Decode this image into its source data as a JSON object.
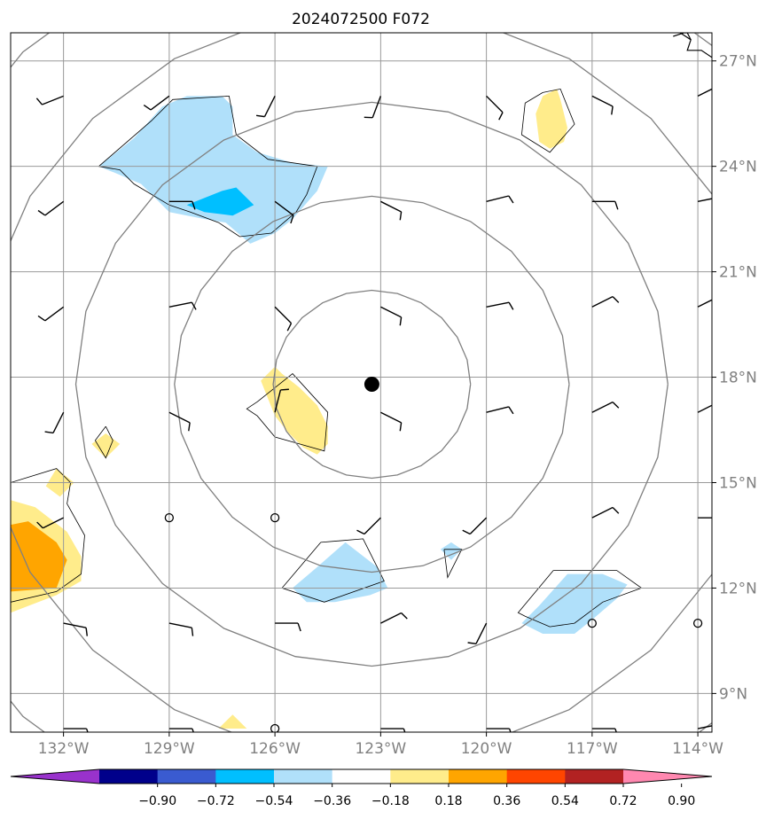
{
  "chart_data": {
    "type": "heatmap",
    "title": "2024072500 F072",
    "x_ticks": [
      "132°W",
      "129°W",
      "126°W",
      "123°W",
      "120°W",
      "117°W",
      "114°W"
    ],
    "x_tick_values": [
      -132,
      -129,
      -126,
      -123,
      -120,
      -117,
      -114
    ],
    "y_ticks": [
      "9°N",
      "12°N",
      "15°N",
      "18°N",
      "21°N",
      "24°N",
      "27°N"
    ],
    "y_tick_values": [
      9,
      12,
      15,
      18,
      21,
      24,
      27
    ],
    "xlim": [
      -133.5,
      -113.6
    ],
    "ylim": [
      7.9,
      27.8
    ],
    "grid": true,
    "center_marker": {
      "lon": -123.25,
      "lat": 17.8
    },
    "range_rings": [
      {
        "lon": -123.25,
        "lat": 17.8,
        "radius_deg": 2.8
      },
      {
        "lon": -123.25,
        "lat": 17.8,
        "radius_deg": 5.6
      },
      {
        "lon": -123.25,
        "lat": 17.8,
        "radius_deg": 8.4
      },
      {
        "lon": -123.25,
        "lat": 17.8,
        "radius_deg": 11.2
      },
      {
        "lon": -123.25,
        "lat": 17.8,
        "radius_deg": 14.0
      }
    ],
    "colorbar": {
      "levels": [
        "−0.90",
        "−0.72",
        "−0.54",
        "−0.36",
        "−0.18",
        "0.18",
        "0.36",
        "0.54",
        "0.72",
        "0.90"
      ],
      "colors": [
        "#9932cc",
        "#00008b",
        "#3a5bd0",
        "#00bfff",
        "#b0e0fa",
        "#ffffff",
        "#ffec8b",
        "#ffa500",
        "#ff4500",
        "#b22222",
        "#ff88b0"
      ],
      "extend": "both"
    },
    "shaded_regions": [
      {
        "level": "−0.36 to −0.18",
        "color": "#b0e0fa",
        "points": [
          [
            -131,
            24
          ],
          [
            -130,
            24.8
          ],
          [
            -129.2,
            25.7
          ],
          [
            -128.5,
            26
          ],
          [
            -127.5,
            26
          ],
          [
            -127.2,
            25.7
          ],
          [
            -127.2,
            24.9
          ],
          [
            -126.5,
            24.4
          ],
          [
            -125.5,
            24.1
          ],
          [
            -124.5,
            24
          ],
          [
            -124.8,
            23.3
          ],
          [
            -125.5,
            22.5
          ],
          [
            -126,
            22.1
          ],
          [
            -126.7,
            21.8
          ],
          [
            -127.4,
            22.4
          ],
          [
            -128,
            22.5
          ],
          [
            -129,
            22.7
          ],
          [
            -129.8,
            23.5
          ],
          [
            -130.5,
            23.8
          ]
        ]
      },
      {
        "level": "−0.54 to −0.36",
        "color": "#00bfff",
        "points": [
          [
            -128.5,
            22.9
          ],
          [
            -127.5,
            23.3
          ],
          [
            -127.1,
            23.4
          ],
          [
            -126.6,
            22.9
          ],
          [
            -127.2,
            22.6
          ],
          [
            -128,
            22.7
          ]
        ]
      },
      {
        "level": "0.18 to 0.36",
        "color": "#ffec8b",
        "points": [
          [
            -118,
            26.2
          ],
          [
            -117.9,
            25.9
          ],
          [
            -117.7,
            25.1
          ],
          [
            -117.8,
            24.7
          ],
          [
            -118.2,
            24.5
          ],
          [
            -118.5,
            24.7
          ],
          [
            -118.6,
            25.5
          ],
          [
            -118.4,
            26
          ]
        ]
      },
      {
        "level": "0.18 to 0.36",
        "color": "#ffec8b",
        "points": [
          [
            -126,
            18.3
          ],
          [
            -125.8,
            18.1
          ],
          [
            -125.3,
            17.7
          ],
          [
            -124.8,
            17.2
          ],
          [
            -124.5,
            16.6
          ],
          [
            -124.5,
            16.1
          ],
          [
            -124.8,
            15.8
          ],
          [
            -125.2,
            16
          ],
          [
            -125.6,
            16.4
          ],
          [
            -126,
            16.9
          ],
          [
            -126.4,
            17.9
          ]
        ]
      },
      {
        "level": "0.18 to 0.36",
        "color": "#ffec8b",
        "points": [
          [
            -130.8,
            16.4
          ],
          [
            -130.4,
            16.1
          ],
          [
            -130.8,
            15.7
          ],
          [
            -131.2,
            16.1
          ]
        ]
      },
      {
        "level": "0.18 to 0.36",
        "color": "#ffec8b",
        "points": [
          [
            -132.2,
            15.4
          ],
          [
            -131.7,
            15
          ],
          [
            -132.1,
            14.6
          ],
          [
            -132.5,
            14.9
          ]
        ]
      },
      {
        "level": "0.18 to 0.36",
        "color": "#ffec8b",
        "points": [
          [
            -127.2,
            8.4
          ],
          [
            -126.8,
            8.0
          ],
          [
            -127.6,
            8.0
          ]
        ]
      },
      {
        "level": "0.18 to 0.36",
        "color": "#ffec8b",
        "points": [
          [
            -133.5,
            14.5
          ],
          [
            -132.8,
            14.3
          ],
          [
            -131.9,
            13.6
          ],
          [
            -131.5,
            12.9
          ],
          [
            -131.5,
            12.2
          ],
          [
            -132.2,
            11.8
          ],
          [
            -133.5,
            11.3
          ]
        ]
      },
      {
        "level": "0.36 to 0.54",
        "color": "#ffa500",
        "points": [
          [
            -133.5,
            13.8
          ],
          [
            -133,
            13.9
          ],
          [
            -132.2,
            13.3
          ],
          [
            -131.9,
            12.8
          ],
          [
            -132.2,
            12
          ],
          [
            -133.5,
            11.9
          ]
        ]
      },
      {
        "level": "−0.36 to −0.18",
        "color": "#b0e0fa",
        "points": [
          [
            -124,
            13.3
          ],
          [
            -123.1,
            12.6
          ],
          [
            -122.8,
            12
          ],
          [
            -123.3,
            11.8
          ],
          [
            -124.3,
            11.6
          ],
          [
            -125.1,
            11.6
          ],
          [
            -125.5,
            12
          ],
          [
            -124.8,
            12.6
          ]
        ]
      },
      {
        "level": "−0.36 to −0.18",
        "color": "#b0e0fa",
        "points": [
          [
            -121,
            13.3
          ],
          [
            -120.7,
            13.1
          ],
          [
            -121,
            12.8
          ],
          [
            -121.3,
            13.1
          ]
        ]
      },
      {
        "level": "−0.36 to −0.18",
        "color": "#b0e0fa",
        "points": [
          [
            -117.7,
            12.4
          ],
          [
            -116.7,
            12.4
          ],
          [
            -116,
            12.1
          ],
          [
            -116.3,
            11.7
          ],
          [
            -117,
            11.1
          ],
          [
            -117.5,
            10.7
          ],
          [
            -118.4,
            10.7
          ],
          [
            -119,
            11
          ],
          [
            -118.5,
            11.5
          ]
        ]
      }
    ],
    "contour_lines": [
      [
        [
          -131,
          24
        ],
        [
          -129.5,
          25.3
        ],
        [
          -128.9,
          25.9
        ],
        [
          -127.3,
          26
        ],
        [
          -127.1,
          24.9
        ],
        [
          -126.2,
          24.2
        ],
        [
          -124.8,
          24
        ],
        [
          -125.1,
          23.2
        ],
        [
          -125.4,
          22.7
        ],
        [
          -126.1,
          22.1
        ],
        [
          -127,
          22
        ],
        [
          -127.6,
          22.4
        ],
        [
          -128.4,
          22.7
        ],
        [
          -129,
          22.9
        ],
        [
          -130,
          23.5
        ],
        [
          -130.4,
          23.9
        ],
        [
          -131,
          24
        ]
      ],
      [
        [
          -118.4,
          26.1
        ],
        [
          -117.9,
          26.2
        ],
        [
          -117.5,
          25.2
        ],
        [
          -118.2,
          24.4
        ],
        [
          -119,
          24.9
        ],
        [
          -118.9,
          25.8
        ],
        [
          -118.4,
          26.1
        ]
      ],
      [
        [
          -126.5,
          17.3
        ],
        [
          -125.5,
          18.1
        ],
        [
          -124.5,
          17
        ],
        [
          -124.6,
          15.9
        ],
        [
          -125.3,
          16.1
        ],
        [
          -126,
          16.3
        ],
        [
          -126.5,
          16.9
        ],
        [
          -126.8,
          17.1
        ],
        [
          -126.5,
          17.3
        ]
      ],
      [
        [
          -130.8,
          16.6
        ],
        [
          -130.6,
          16.2
        ],
        [
          -130.8,
          15.7
        ],
        [
          -131.1,
          16.2
        ],
        [
          -130.8,
          16.6
        ]
      ],
      [
        [
          -133.5,
          15
        ],
        [
          -132.2,
          15.4
        ],
        [
          -131.8,
          15
        ],
        [
          -131.9,
          14.4
        ],
        [
          -131.4,
          13.5
        ],
        [
          -131.5,
          12.4
        ],
        [
          -132.2,
          11.9
        ],
        [
          -133.5,
          11.6
        ]
      ],
      [
        [
          -124.7,
          13.3
        ],
        [
          -123.5,
          13.4
        ],
        [
          -122.9,
          12.2
        ],
        [
          -124.6,
          11.6
        ],
        [
          -125.8,
          12
        ],
        [
          -124.7,
          13.3
        ]
      ],
      [
        [
          -121.2,
          13.1
        ],
        [
          -120.7,
          13.1
        ],
        [
          -121.1,
          12.3
        ],
        [
          -121.2,
          13.1
        ]
      ],
      [
        [
          -118.1,
          12.5
        ],
        [
          -116.3,
          12.5
        ],
        [
          -115.6,
          12
        ],
        [
          -116.7,
          11.6
        ],
        [
          -117.5,
          11
        ],
        [
          -118.2,
          10.9
        ],
        [
          -118.9,
          11.2
        ],
        [
          -119.1,
          11.3
        ],
        [
          -118.1,
          12.5
        ]
      ]
    ],
    "coastline": [
      [
        -114.5,
        27.8
      ],
      [
        -114.2,
        27.6
      ],
      [
        -114.3,
        27.3
      ],
      [
        -113.9,
        27.3
      ],
      [
        -113.6,
        27.1
      ]
    ],
    "coastline2": [
      [
        -114.7,
        27.7
      ],
      [
        -114.4,
        27.8
      ],
      [
        -114.3,
        27.8
      ],
      [
        -114.2,
        27.6
      ]
    ],
    "wind_barbs": [
      {
        "lon": -132,
        "lat": 26,
        "u": 10,
        "v": 4
      },
      {
        "lon": -129,
        "lat": 26,
        "u": 8,
        "v": 6
      },
      {
        "lon": -126,
        "lat": 26,
        "u": 4,
        "v": 8
      },
      {
        "lon": -123,
        "lat": 26,
        "u": 3,
        "v": 8
      },
      {
        "lon": -120,
        "lat": 26,
        "u": -6,
        "v": 6
      },
      {
        "lon": -117,
        "lat": 26,
        "u": -8,
        "v": 4
      },
      {
        "lon": -114,
        "lat": 26,
        "u": -8,
        "v": -4
      },
      {
        "lon": -132,
        "lat": 23,
        "u": 8,
        "v": 6
      },
      {
        "lon": -129,
        "lat": 23,
        "u": -10,
        "v": 0
      },
      {
        "lon": -126,
        "lat": 23,
        "u": -8,
        "v": 6
      },
      {
        "lon": -123,
        "lat": 23,
        "u": -8,
        "v": 4
      },
      {
        "lon": -120,
        "lat": 23,
        "u": -8,
        "v": -2
      },
      {
        "lon": -117,
        "lat": 23,
        "u": -10,
        "v": 0
      },
      {
        "lon": -114,
        "lat": 23,
        "u": -10,
        "v": -2
      },
      {
        "lon": -132,
        "lat": 20,
        "u": 8,
        "v": 6
      },
      {
        "lon": -129,
        "lat": 20,
        "u": -10,
        "v": -2
      },
      {
        "lon": -126,
        "lat": 20,
        "u": -6,
        "v": 6
      },
      {
        "lon": -123,
        "lat": 20,
        "u": -8,
        "v": 4
      },
      {
        "lon": -120,
        "lat": 20,
        "u": -10,
        "v": -2
      },
      {
        "lon": -117,
        "lat": 20,
        "u": -8,
        "v": -4
      },
      {
        "lon": -114,
        "lat": 20,
        "u": -8,
        "v": -4
      },
      {
        "lon": -132,
        "lat": 17,
        "u": 4,
        "v": 8
      },
      {
        "lon": -129,
        "lat": 17,
        "u": -8,
        "v": 4
      },
      {
        "lon": -126,
        "lat": 17,
        "u": -2,
        "v": -8
      },
      {
        "lon": -123,
        "lat": 17,
        "u": -8,
        "v": 4
      },
      {
        "lon": -120,
        "lat": 17,
        "u": -8,
        "v": -2
      },
      {
        "lon": -117,
        "lat": 17,
        "u": -8,
        "v": -4
      },
      {
        "lon": -114,
        "lat": 17,
        "u": -8,
        "v": -4
      },
      {
        "lon": -132,
        "lat": 14,
        "u": 8,
        "v": 4
      },
      {
        "lon": -129,
        "lat": 14,
        "u": 0,
        "v": 0
      },
      {
        "lon": -126,
        "lat": 14,
        "u": 0,
        "v": 0
      },
      {
        "lon": -123,
        "lat": 14,
        "u": 6,
        "v": 6
      },
      {
        "lon": -120,
        "lat": 14,
        "u": 6,
        "v": 6
      },
      {
        "lon": -117,
        "lat": 14,
        "u": -8,
        "v": -4
      },
      {
        "lon": -114,
        "lat": 14,
        "u": -10,
        "v": 0
      },
      {
        "lon": -132,
        "lat": 11,
        "u": -10,
        "v": 2
      },
      {
        "lon": -129,
        "lat": 11,
        "u": -10,
        "v": 2
      },
      {
        "lon": -126,
        "lat": 11,
        "u": -10,
        "v": 0
      },
      {
        "lon": -123,
        "lat": 11,
        "u": -8,
        "v": -4
      },
      {
        "lon": -120,
        "lat": 11,
        "u": 4,
        "v": 8
      },
      {
        "lon": -117,
        "lat": 11,
        "u": 0,
        "v": 0
      },
      {
        "lon": -114,
        "lat": 11,
        "u": 0,
        "v": 0
      },
      {
        "lon": -132,
        "lat": 8,
        "u": -10,
        "v": 0
      },
      {
        "lon": -129,
        "lat": 8,
        "u": -10,
        "v": 0
      },
      {
        "lon": -126,
        "lat": 8,
        "u": 0,
        "v": 0
      },
      {
        "lon": -123,
        "lat": 8,
        "u": -10,
        "v": 0
      },
      {
        "lon": -120,
        "lat": 8,
        "u": -10,
        "v": 0
      },
      {
        "lon": -117,
        "lat": 8,
        "u": -10,
        "v": 0
      },
      {
        "lon": -114,
        "lat": 8,
        "u": -10,
        "v": -2
      }
    ]
  }
}
